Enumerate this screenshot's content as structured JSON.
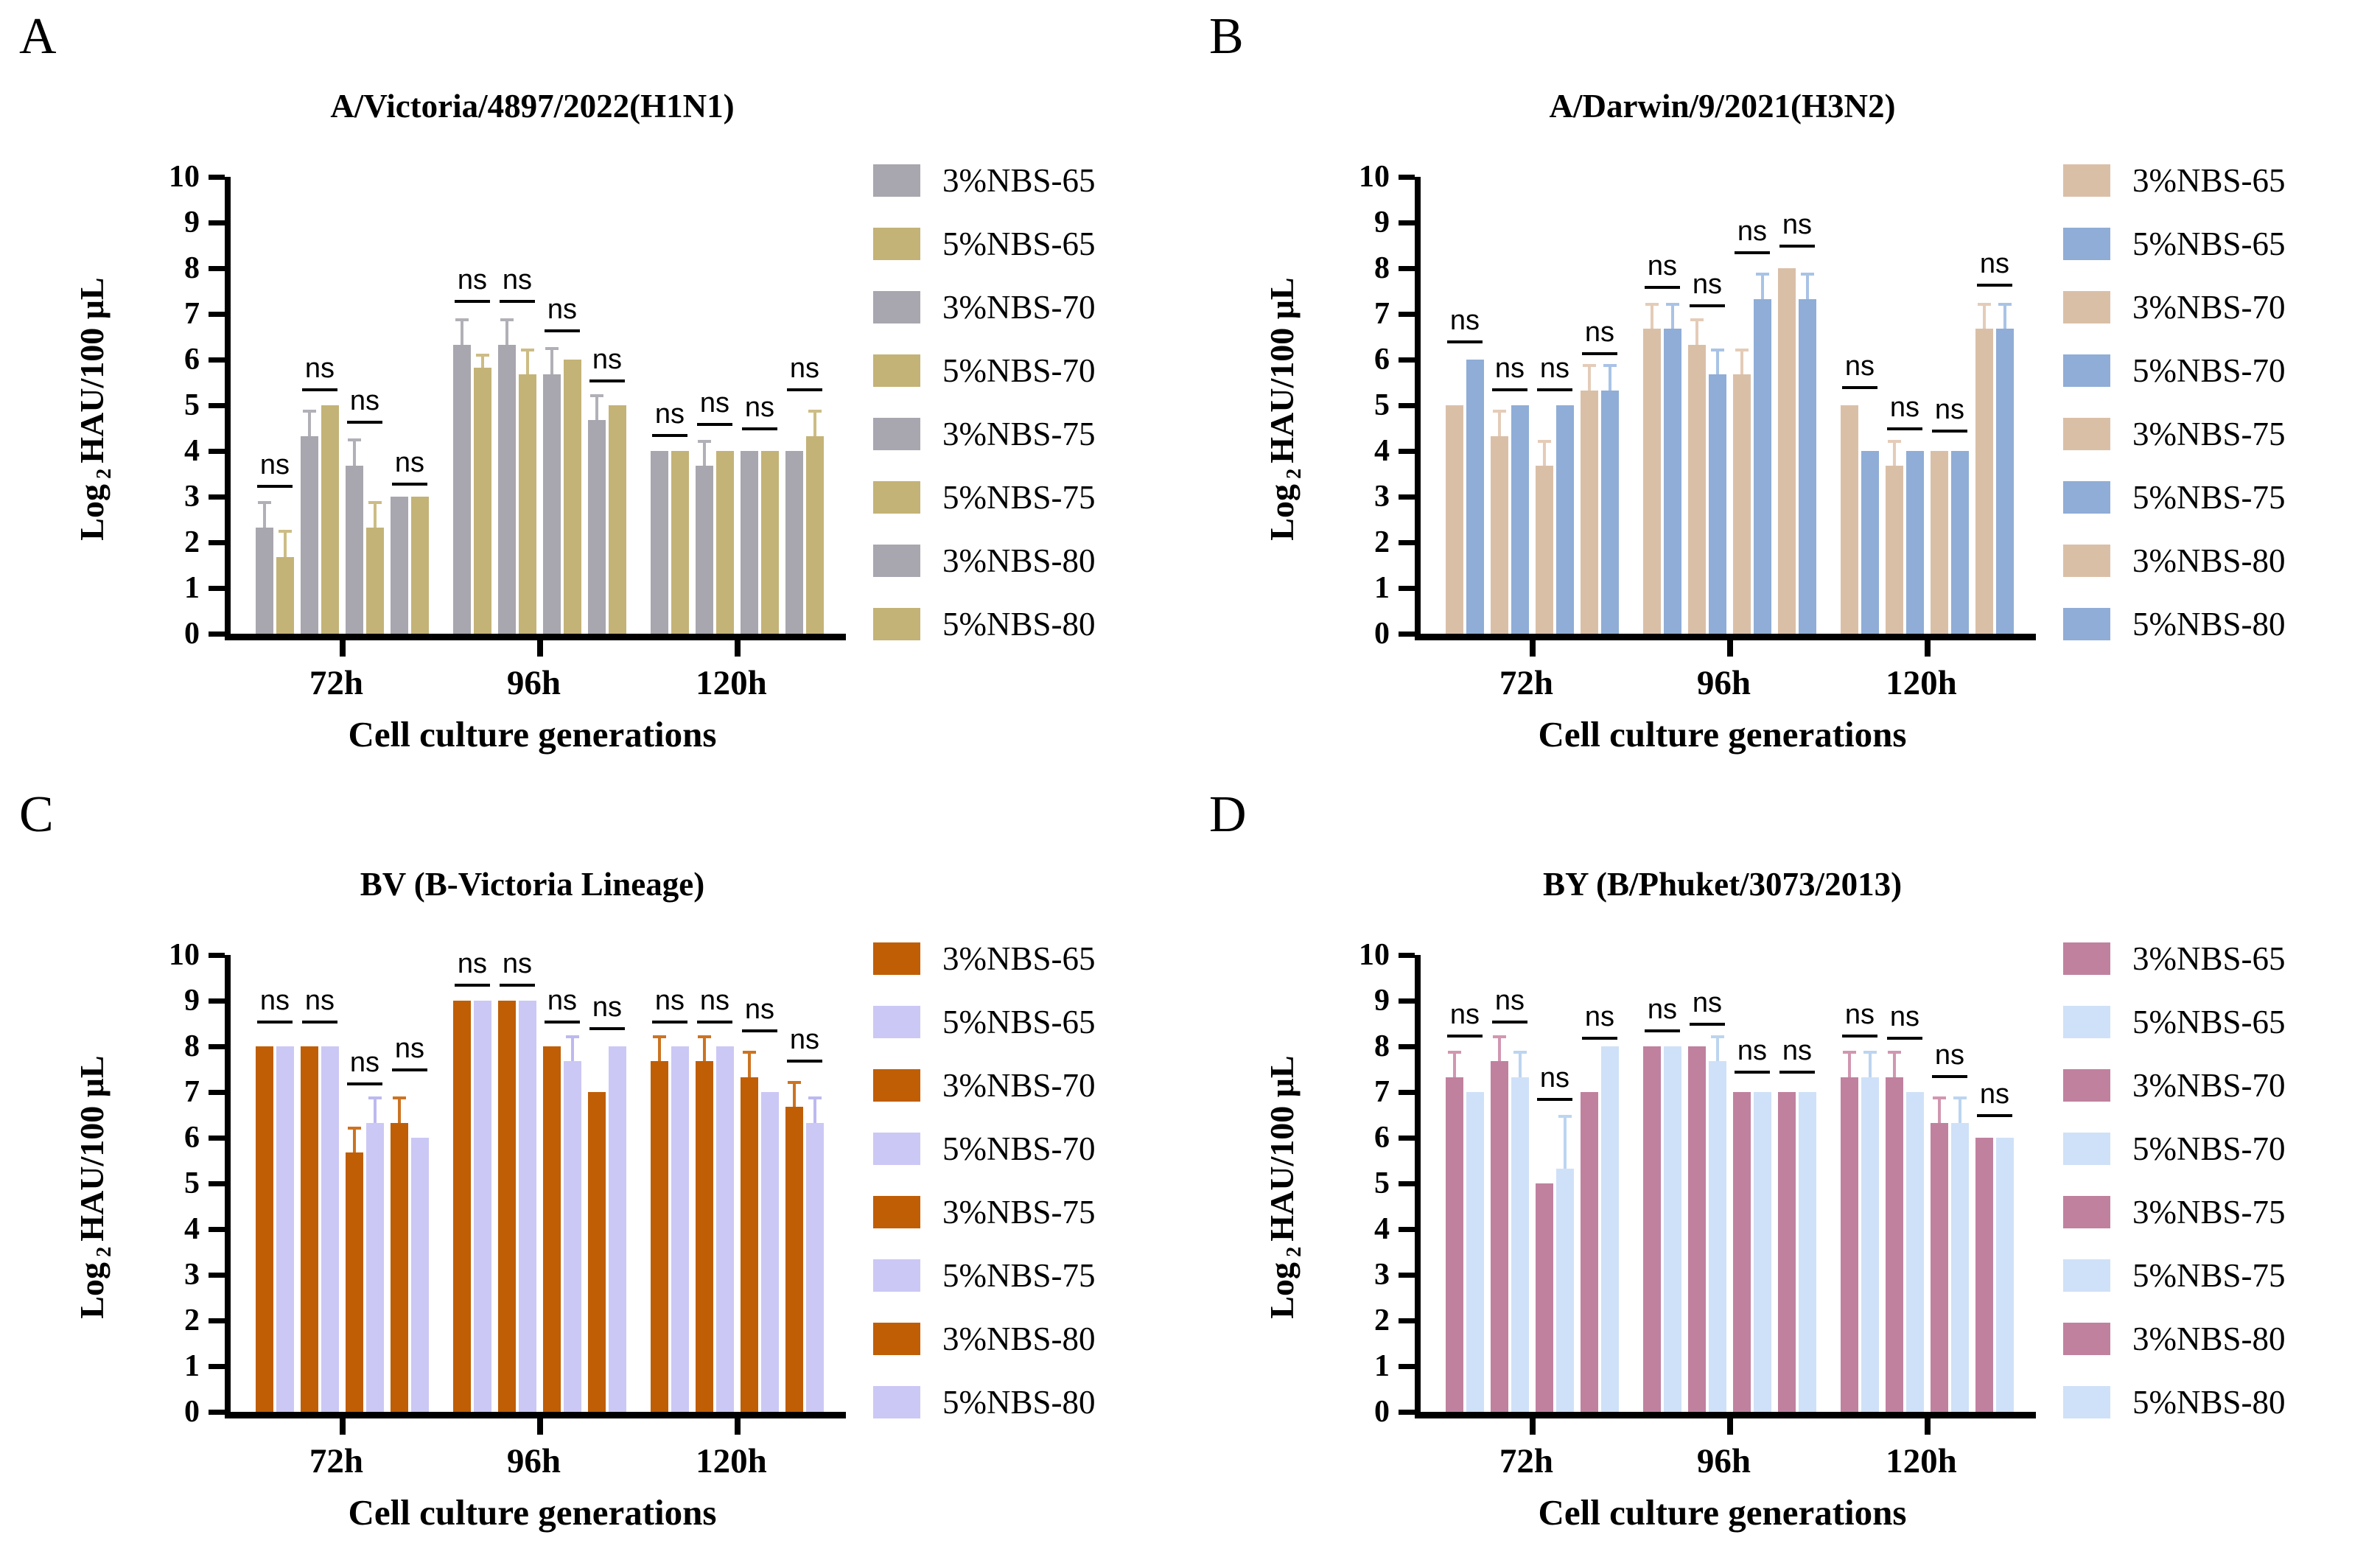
{
  "figure": {
    "xlabel": "Cell culture generations",
    "ylabel": {
      "pre": "Log",
      "sub": "2",
      "post": "HAU/100 μL"
    },
    "ns_label": "ns"
  },
  "chart_data": [
    {
      "id": "A",
      "type": "bar",
      "title": "A/Victoria/4897/2022(H1N1)",
      "xlabel": "Cell culture generations",
      "ylabel": "Log2 HAU/100 uL",
      "ylim": [
        0,
        10
      ],
      "yticks": [
        0,
        1,
        2,
        3,
        4,
        5,
        6,
        7,
        8,
        9,
        10
      ],
      "categories": [
        "72h",
        "96h",
        "120h"
      ],
      "legend_position": "right",
      "colors": {
        "pct3": "#a8a6ae",
        "pct5": "#c4b377",
        "err3": "#b2b0b7",
        "err5": "#cdbd85"
      },
      "series": [
        {
          "name": "3%NBS-65",
          "values": [
            2.33,
            6.33,
            4.0
          ],
          "errors": [
            0.57,
            0.57,
            0
          ]
        },
        {
          "name": "5%NBS-65",
          "values": [
            1.67,
            5.83,
            4.0
          ],
          "errors": [
            0.6,
            0.3,
            0
          ]
        },
        {
          "name": "3%NBS-70",
          "values": [
            4.33,
            6.33,
            3.67
          ],
          "errors": [
            0.57,
            0.57,
            0.58
          ]
        },
        {
          "name": "5%NBS-70",
          "values": [
            5.0,
            5.67,
            4.0
          ],
          "errors": [
            0,
            0.58,
            0
          ]
        },
        {
          "name": "3%NBS-75",
          "values": [
            3.67,
            5.67,
            4.0
          ],
          "errors": [
            0.6,
            0.6,
            0
          ]
        },
        {
          "name": "5%NBS-75",
          "values": [
            2.33,
            6.0,
            4.0
          ],
          "errors": [
            0.57,
            0,
            0
          ]
        },
        {
          "name": "3%NBS-80",
          "values": [
            3.0,
            4.67,
            4.0
          ],
          "errors": [
            0,
            0.58,
            0
          ]
        },
        {
          "name": "5%NBS-80",
          "values": [
            3.0,
            5.0,
            4.33
          ],
          "errors": [
            0,
            0,
            0.57
          ]
        }
      ],
      "ns": {
        "label": "ns",
        "heights": [
          [
            3.2,
            5.3,
            4.6,
            3.25
          ],
          [
            7.25,
            7.25,
            6.6,
            5.5
          ],
          [
            4.3,
            4.55,
            4.45,
            5.3
          ]
        ]
      }
    },
    {
      "id": "B",
      "type": "bar",
      "title": "A/Darwin/9/2021(H3N2)",
      "xlabel": "Cell culture generations",
      "ylabel": "Log2 HAU/100 uL",
      "ylim": [
        0,
        10
      ],
      "yticks": [
        0,
        1,
        2,
        3,
        4,
        5,
        6,
        7,
        8,
        9,
        10
      ],
      "categories": [
        "72h",
        "96h",
        "120h"
      ],
      "legend_position": "right",
      "colors": {
        "pct3": "#dabfa7",
        "pct5": "#8fadd6",
        "err3": "#e4ccb8",
        "err5": "#a9c3e6"
      },
      "series": [
        {
          "name": "3%NBS-65",
          "values": [
            5.0,
            6.67,
            5.0
          ],
          "errors": [
            0,
            0.58,
            0
          ]
        },
        {
          "name": "5%NBS-65",
          "values": [
            6.0,
            6.67,
            4.0
          ],
          "errors": [
            0,
            0.58,
            0
          ]
        },
        {
          "name": "3%NBS-70",
          "values": [
            4.33,
            6.33,
            3.67
          ],
          "errors": [
            0.57,
            0.57,
            0.58
          ]
        },
        {
          "name": "5%NBS-70",
          "values": [
            5.0,
            5.67,
            4.0
          ],
          "errors": [
            0,
            0.58,
            0
          ]
        },
        {
          "name": "3%NBS-75",
          "values": [
            3.67,
            5.67,
            4.0
          ],
          "errors": [
            0.58,
            0.58,
            0
          ]
        },
        {
          "name": "5%NBS-75",
          "values": [
            5.0,
            7.33,
            4.0
          ],
          "errors": [
            0,
            0.57,
            0
          ]
        },
        {
          "name": "3%NBS-80",
          "values": [
            5.33,
            8.0,
            6.67
          ],
          "errors": [
            0.57,
            0,
            0.58
          ]
        },
        {
          "name": "5%NBS-80",
          "values": [
            5.33,
            7.33,
            6.67
          ],
          "errors": [
            0.57,
            0.57,
            0.58
          ]
        }
      ],
      "ns": {
        "label": "ns",
        "heights": [
          [
            6.35,
            5.3,
            5.3,
            6.1
          ],
          [
            7.55,
            7.15,
            8.3,
            8.45
          ],
          [
            5.35,
            4.45,
            4.4,
            7.6
          ]
        ]
      }
    },
    {
      "id": "C",
      "type": "bar",
      "title": "BV (B-Victoria Lineage)",
      "xlabel": "Cell culture generations",
      "ylabel": "Log2 HAU/100 uL",
      "ylim": [
        0,
        10
      ],
      "yticks": [
        0,
        1,
        2,
        3,
        4,
        5,
        6,
        7,
        8,
        9,
        10
      ],
      "categories": [
        "72h",
        "96h",
        "120h"
      ],
      "legend_position": "right",
      "colors": {
        "pct3": "#c05e06",
        "pct5": "#cbc8f5",
        "err3": "#cc7322",
        "err5": "#bdb9ef"
      },
      "series": [
        {
          "name": "3%NBS-65",
          "values": [
            8.0,
            9.0,
            7.67
          ],
          "errors": [
            0,
            0,
            0.58
          ]
        },
        {
          "name": "5%NBS-65",
          "values": [
            8.0,
            9.0,
            8.0
          ],
          "errors": [
            0,
            0,
            0
          ]
        },
        {
          "name": "3%NBS-70",
          "values": [
            8.0,
            9.0,
            7.67
          ],
          "errors": [
            0,
            0,
            0.58
          ]
        },
        {
          "name": "5%NBS-70",
          "values": [
            8.0,
            9.0,
            8.0
          ],
          "errors": [
            0,
            0,
            0
          ]
        },
        {
          "name": "3%NBS-75",
          "values": [
            5.67,
            8.0,
            7.33
          ],
          "errors": [
            0.58,
            0,
            0.57
          ]
        },
        {
          "name": "5%NBS-75",
          "values": [
            6.33,
            7.67,
            7.0
          ],
          "errors": [
            0.57,
            0.58,
            0
          ]
        },
        {
          "name": "3%NBS-80",
          "values": [
            6.33,
            7.0,
            6.67
          ],
          "errors": [
            0.57,
            0,
            0.58
          ]
        },
        {
          "name": "5%NBS-80",
          "values": [
            6.0,
            8.0,
            6.33
          ],
          "errors": [
            0,
            0,
            0.57
          ]
        }
      ],
      "ns": {
        "label": "ns",
        "heights": [
          [
            8.5,
            8.5,
            7.15,
            7.45
          ],
          [
            9.3,
            9.3,
            8.5,
            8.35
          ],
          [
            8.5,
            8.5,
            8.3,
            7.65
          ]
        ]
      }
    },
    {
      "id": "D",
      "type": "bar",
      "title": "BY (B/Phuket/3073/2013)",
      "xlabel": "Cell culture generations",
      "ylabel": "Log2 HAU/100 uL",
      "ylim": [
        0,
        10
      ],
      "yticks": [
        0,
        1,
        2,
        3,
        4,
        5,
        6,
        7,
        8,
        9,
        10
      ],
      "categories": [
        "72h",
        "96h",
        "120h"
      ],
      "legend_position": "right",
      "colors": {
        "pct3": "#c0819f",
        "pct5": "#cfe1f8",
        "err3": "#d197b0",
        "err5": "#bcd5f0"
      },
      "series": [
        {
          "name": "3%NBS-65",
          "values": [
            7.33,
            8.0,
            7.33
          ],
          "errors": [
            0.57,
            0,
            0.57
          ]
        },
        {
          "name": "5%NBS-65",
          "values": [
            7.0,
            8.0,
            7.33
          ],
          "errors": [
            0,
            0,
            0.57
          ]
        },
        {
          "name": "3%NBS-70",
          "values": [
            7.67,
            8.0,
            7.33
          ],
          "errors": [
            0.58,
            0,
            0.57
          ]
        },
        {
          "name": "5%NBS-70",
          "values": [
            7.33,
            7.67,
            7.0
          ],
          "errors": [
            0.57,
            0.58,
            0
          ]
        },
        {
          "name": "3%NBS-75",
          "values": [
            5.0,
            7.0,
            6.33
          ],
          "errors": [
            0,
            0,
            0.57
          ]
        },
        {
          "name": "5%NBS-75",
          "values": [
            5.33,
            7.0,
            6.33
          ],
          "errors": [
            1.17,
            0,
            0.57
          ]
        },
        {
          "name": "3%NBS-80",
          "values": [
            7.0,
            7.0,
            6.0
          ],
          "errors": [
            0,
            0,
            0
          ]
        },
        {
          "name": "5%NBS-80",
          "values": [
            8.0,
            7.0,
            6.0
          ],
          "errors": [
            0,
            0,
            0
          ]
        }
      ],
      "ns": {
        "label": "ns",
        "heights": [
          [
            8.2,
            8.5,
            6.8,
            8.15
          ],
          [
            8.3,
            8.45,
            7.4,
            7.4
          ],
          [
            8.2,
            8.15,
            7.3,
            6.45
          ]
        ]
      }
    }
  ]
}
